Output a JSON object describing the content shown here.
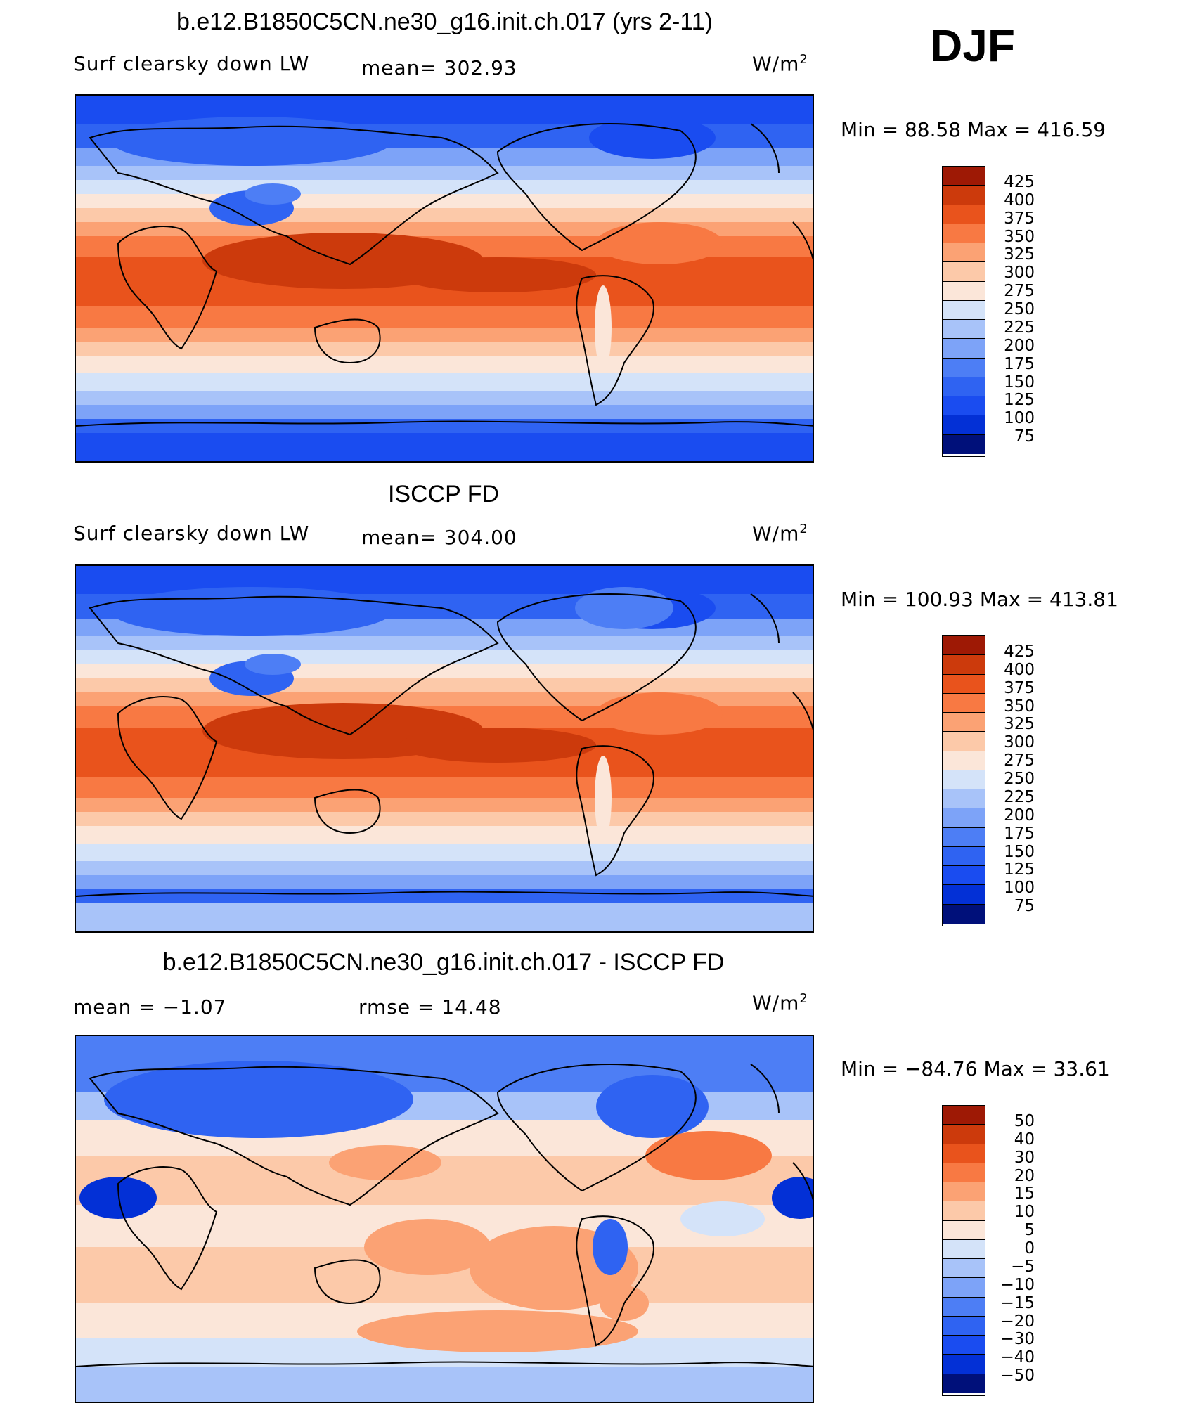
{
  "season": "DJF",
  "colors": {
    "map_ramp": [
      "#00107a",
      "#0330d6",
      "#1a4cf0",
      "#2f63f2",
      "#4d7ef5",
      "#7da3f8",
      "#a8c3f9",
      "#d4e3f9",
      "#fbe6d9",
      "#fcc9a9",
      "#fba274",
      "#f87943",
      "#e9531c",
      "#cc3a0c",
      "#9e1905"
    ],
    "diff_ramp": [
      "#00107a",
      "#0330d6",
      "#1a4cf0",
      "#2f63f2",
      "#4d7ef5",
      "#7da3f8",
      "#a8c3f9",
      "#d4e3f9",
      "#fbe6d9",
      "#fcc9a9",
      "#fba274",
      "#f87943",
      "#e9531c",
      "#cc3a0c",
      "#9e1905"
    ]
  },
  "panels": [
    {
      "title": "b.e12.B1850C5CN.ne30_g16.init.ch.017 (yrs 2-11)",
      "left_label": "Surf clearsky down LW",
      "center_label": "mean=  302.93",
      "units_base": "W/m",
      "units_exp": "2",
      "min_max": "Min  =    88.58  Max  =  416.59"
    },
    {
      "title": "ISCCP FD",
      "left_label": "Surf clearsky down LW",
      "center_label": "mean=  304.00",
      "units_base": "W/m",
      "units_exp": "2",
      "min_max": "Min  =  100.93  Max  =  413.81"
    },
    {
      "title": "b.e12.B1850C5CN.ne30_g16.init.ch.017 - ISCCP FD",
      "left_label": "mean  =    −1.07",
      "center_label": "rmse  =    14.48",
      "units_base": "W/m",
      "units_exp": "2",
      "min_max": "Min  =  −84.76  Max  =    33.61"
    }
  ],
  "chart_data": [
    {
      "type": "heatmap",
      "title": "b.e12.B1850C5CN.ne30_g16.init.ch.017 (yrs 2-11)",
      "variable": "Surf clearsky down LW",
      "units": "W/m2",
      "mean": 302.93,
      "min": 88.58,
      "max": 416.59,
      "colorbar_levels": [
        425,
        400,
        375,
        350,
        325,
        300,
        275,
        250,
        225,
        200,
        175,
        150,
        125,
        100,
        75
      ]
    },
    {
      "type": "heatmap",
      "title": "ISCCP FD",
      "variable": "Surf clearsky down LW",
      "units": "W/m2",
      "mean": 304.0,
      "min": 100.93,
      "max": 413.81,
      "colorbar_levels": [
        425,
        400,
        375,
        350,
        325,
        300,
        275,
        250,
        225,
        200,
        175,
        150,
        125,
        100,
        75
      ]
    },
    {
      "type": "heatmap",
      "title": "b.e12.B1850C5CN.ne30_g16.init.ch.017 - ISCCP FD",
      "units": "W/m2",
      "mean": -1.07,
      "rmse": 14.48,
      "min": -84.76,
      "max": 33.61,
      "colorbar_levels": [
        50,
        40,
        30,
        20,
        15,
        10,
        5,
        0,
        -5,
        -10,
        -15,
        -20,
        -30,
        -40,
        -50
      ]
    }
  ],
  "colorbar_labels": [
    [
      "425",
      "400",
      "375",
      "350",
      "325",
      "300",
      "275",
      "250",
      "225",
      "200",
      "175",
      "150",
      "125",
      "100",
      "75"
    ],
    [
      "425",
      "400",
      "375",
      "350",
      "325",
      "300",
      "275",
      "250",
      "225",
      "200",
      "175",
      "150",
      "125",
      "100",
      "75"
    ],
    [
      "50",
      "40",
      "30",
      "20",
      "15",
      "10",
      "5",
      "0",
      "−5",
      "−10",
      "−15",
      "−20",
      "−30",
      "−40",
      "−50"
    ]
  ]
}
